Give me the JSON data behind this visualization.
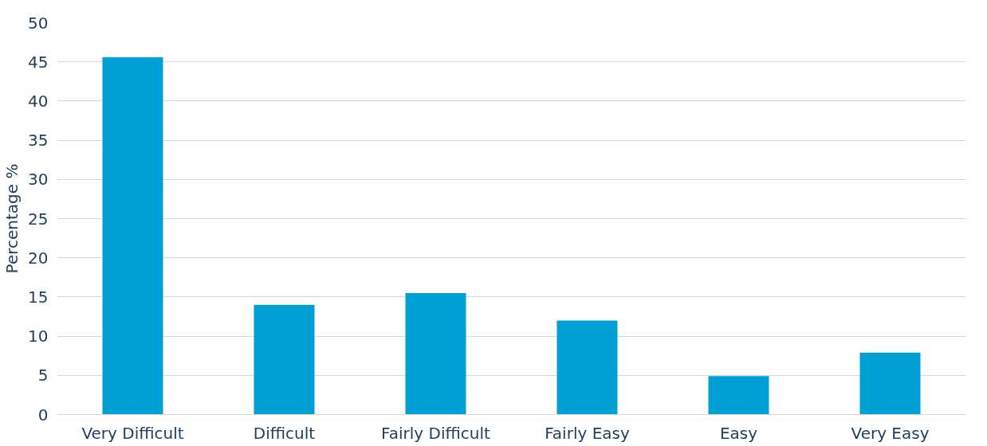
{
  "chart_data": {
    "type": "bar",
    "ylabel": "Percentage %",
    "categories": [
      "Very Difficult",
      "Difficult",
      "Fairly Difficult",
      "Fairly Easy",
      "Easy",
      "Very Easy"
    ],
    "values": [
      45.6,
      14,
      15.5,
      12,
      4.9,
      7.9
    ],
    "color": "#009fd4",
    "ylim": [
      0,
      50
    ],
    "yticks": [
      0,
      5,
      10,
      15,
      20,
      25,
      30,
      35,
      40,
      45,
      50
    ],
    "grid": "y"
  }
}
